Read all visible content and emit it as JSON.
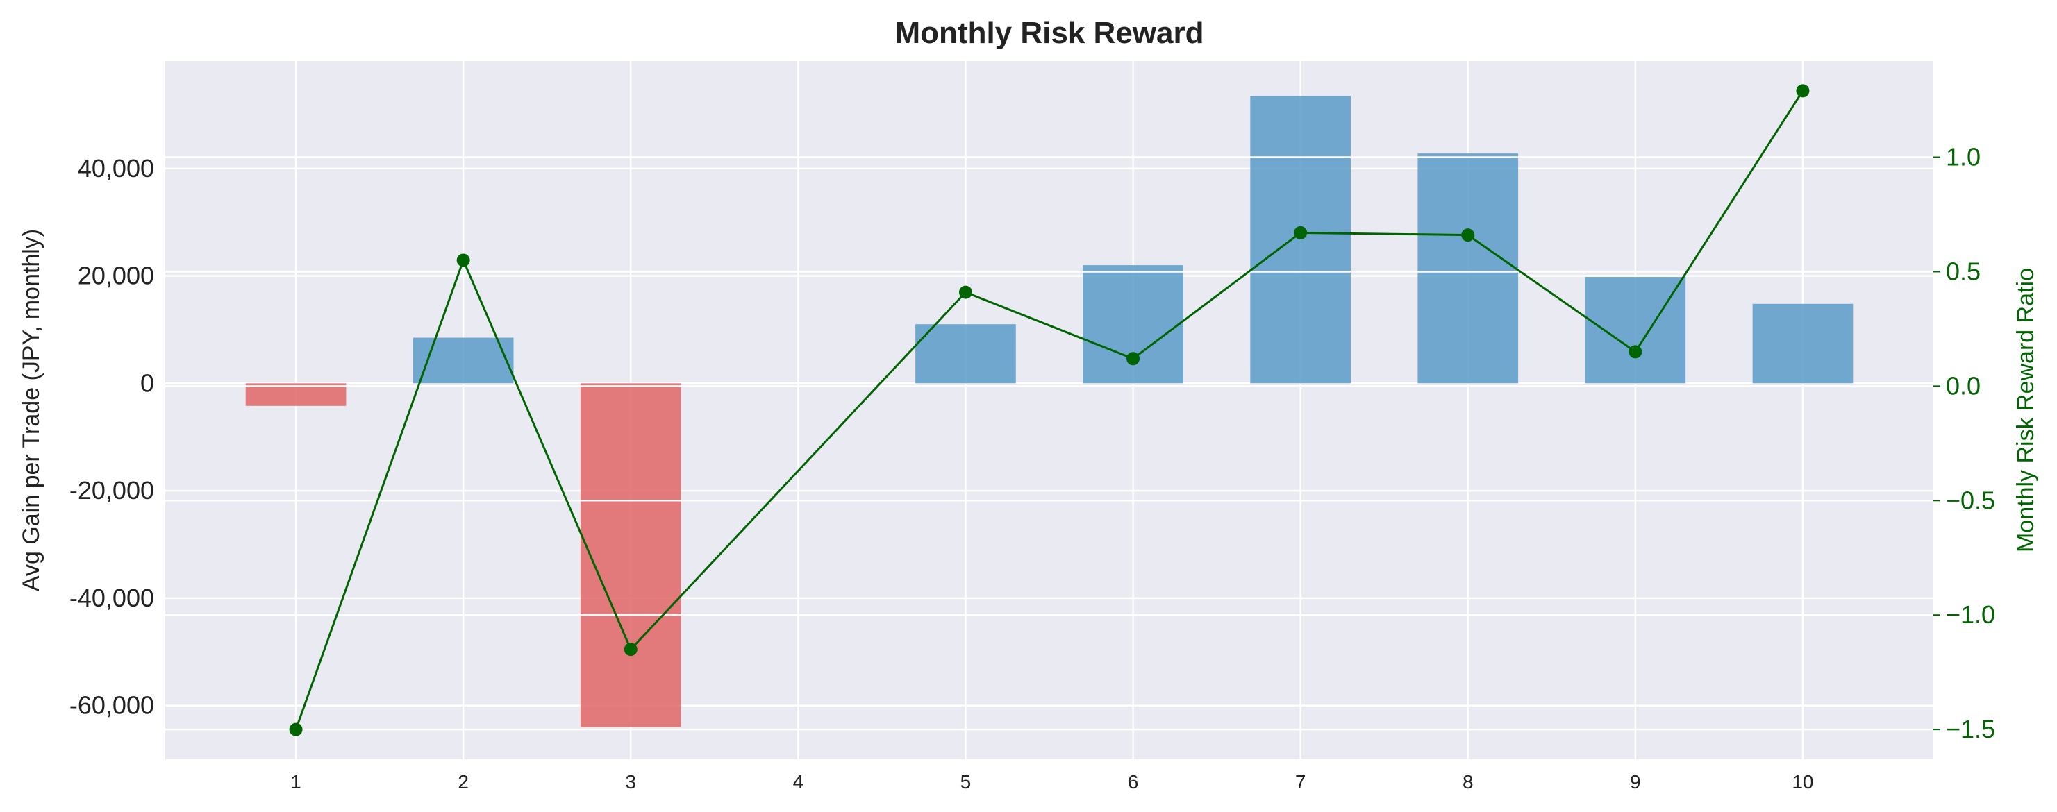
{
  "chart_data": {
    "type": "bar",
    "title": "Monthly Risk Reward",
    "categories": [
      "1",
      "2",
      "3",
      "4",
      "5",
      "6",
      "7",
      "8",
      "9",
      "10"
    ],
    "series": [
      {
        "type": "bar",
        "axis": "left",
        "values": [
          -4200,
          8500,
          -64000,
          null,
          11000,
          22000,
          53500,
          42800,
          19800,
          14800
        ],
        "color_positive": "#5b9bc8",
        "color_negative": "#e06666"
      },
      {
        "type": "line",
        "axis": "right",
        "values": [
          -1.5,
          0.55,
          -1.15,
          null,
          0.41,
          0.12,
          0.67,
          0.66,
          0.15,
          1.29
        ],
        "color": "#006400"
      }
    ],
    "ylabel": "Avg Gain per Trade (JPY, monthly)",
    "ylabel_right": "Monthly Risk Reward Ratio",
    "ylim": [
      -70000,
      60000
    ],
    "ylim_right": [
      -1.63,
      1.42
    ],
    "yticks": [
      -60000,
      -40000,
      -20000,
      0,
      20000,
      40000
    ],
    "ytick_labels": [
      "-60,000",
      "-40,000",
      "-20,000",
      "0",
      "20,000",
      "40,000"
    ],
    "yticks_right": [
      -1.5,
      -1.0,
      -0.5,
      0.0,
      0.5,
      1.0
    ],
    "ytick_labels_right": [
      "−1.5",
      "−1.0",
      "−0.5",
      "0.0",
      "0.5",
      "1.0"
    ],
    "xlim": [
      0.22,
      10.78
    ],
    "grid": true,
    "legend": "none",
    "background": "#eaeaf2",
    "grid_color": "#ffffff",
    "right_axis_color": "#006400"
  }
}
